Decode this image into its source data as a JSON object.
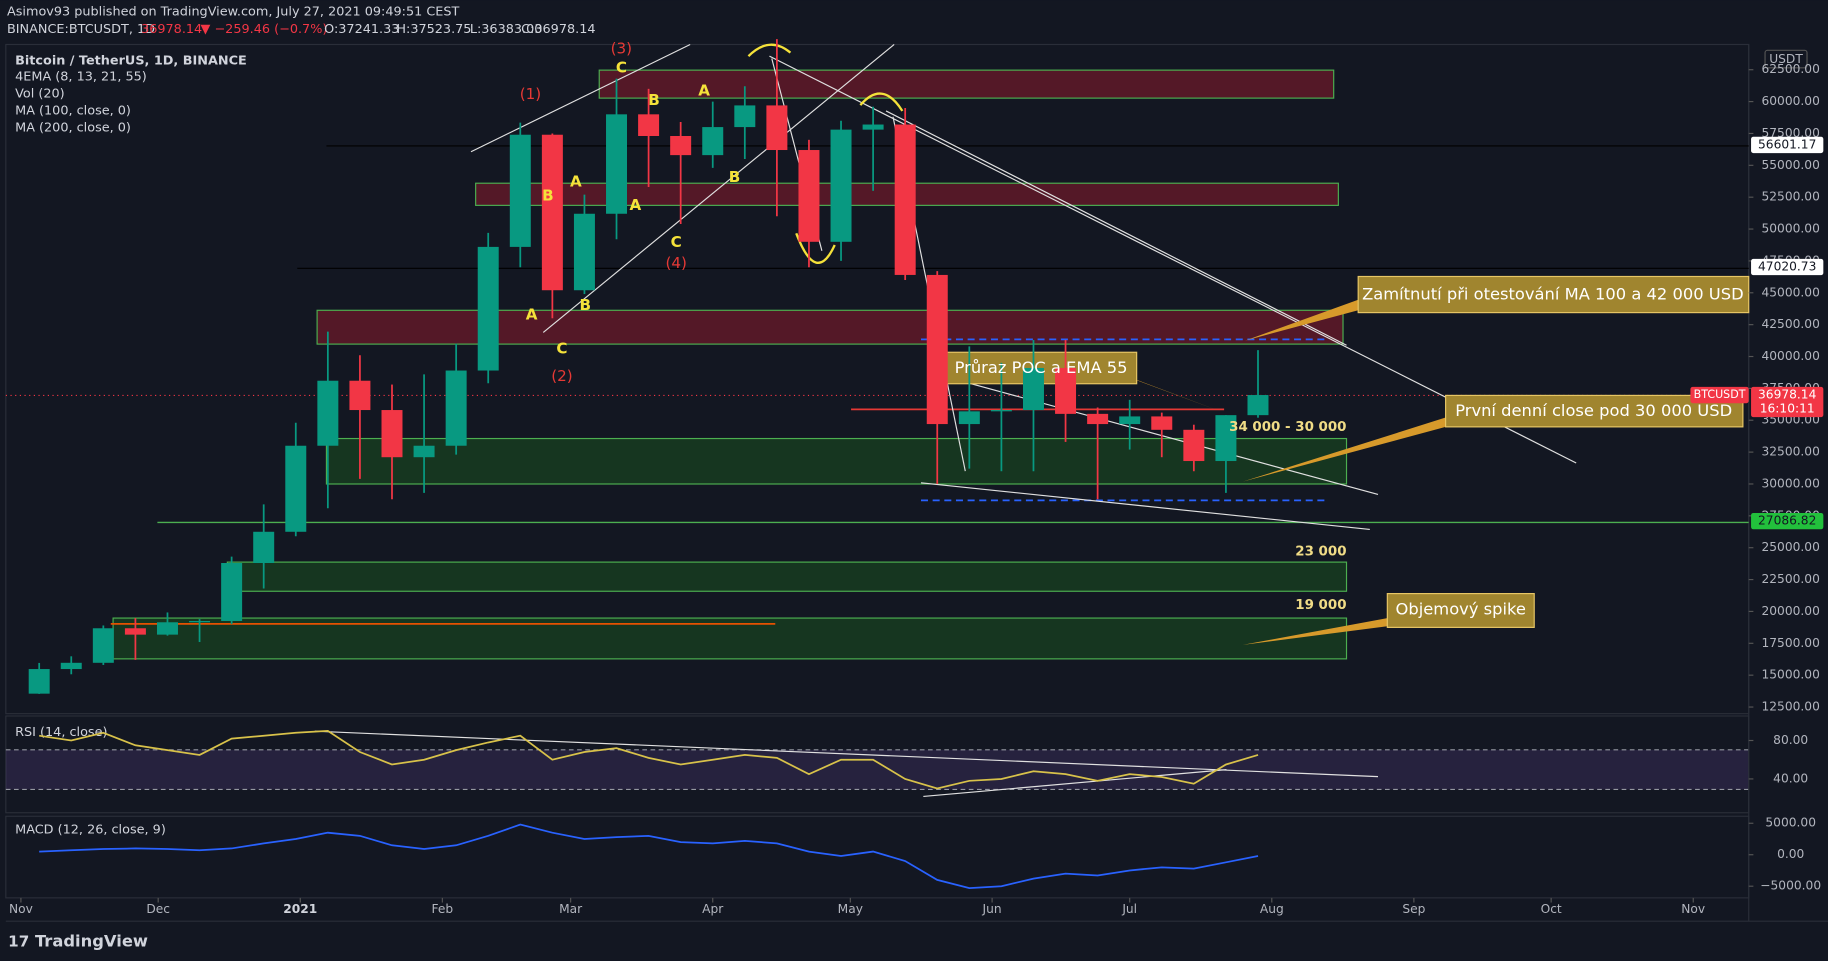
{
  "header": {
    "author": "Asimov93 published on TradingView.com, July 27, 2021 09:49:51 CEST",
    "symbol": "BINANCE:BTCUSDT, 1D",
    "last": "36978.14",
    "change": "▼ −259.46 (−0.7%)",
    "o": "O:37241.33",
    "h": "H:37523.75",
    "l": "L:36383.00",
    "c": "C:36978.14"
  },
  "footer": "TradingView",
  "chart_data": [
    {
      "type": "candlestick",
      "currency": "USDT",
      "x": [
        0,
        1,
        2,
        3,
        4,
        5,
        6,
        7,
        8,
        9,
        10,
        11,
        12,
        13,
        14,
        15,
        16,
        17,
        18,
        19,
        20,
        21,
        22,
        23,
        24,
        25,
        26,
        27,
        28,
        29,
        30,
        31,
        32,
        33,
        34,
        35,
        36,
        37,
        38
      ],
      "series": [
        {
          "name": "Bitcoin / TetherUS, 1D, BINANCE",
          "up_color": "#089981",
          "down_color": "#f23645",
          "open": [
            13550,
            15480,
            15970,
            18680,
            18180,
            19150,
            19250,
            23800,
            26250,
            33000,
            38100,
            35800,
            32100,
            33000,
            38900,
            48600,
            57400,
            45200,
            51200,
            59000,
            57300,
            55800,
            58000,
            59700,
            56200,
            49000,
            57800,
            58200,
            46400,
            34700,
            35700,
            35800,
            39100,
            35500,
            34700,
            35300,
            34250,
            31800,
            35400
          ],
          "high": [
            15960,
            16480,
            18900,
            19480,
            19920,
            19400,
            24300,
            28400,
            34800,
            41950,
            40100,
            37800,
            38600,
            41000,
            49700,
            58350,
            57500,
            52700,
            61800,
            61000,
            58400,
            60000,
            61200,
            64900,
            57000,
            58500,
            59600,
            59500,
            46700,
            40800,
            39500,
            41300,
            41300,
            36000,
            36600,
            35600,
            34650,
            35400,
            40500
          ],
          "low": [
            13530,
            15070,
            15800,
            16200,
            18100,
            17600,
            19000,
            21800,
            25900,
            28100,
            30400,
            28800,
            29300,
            32300,
            37900,
            47000,
            43000,
            44900,
            49200,
            53300,
            50400,
            54800,
            55500,
            51000,
            47000,
            47500,
            53000,
            46000,
            30000,
            31200,
            31000,
            31000,
            33300,
            28800,
            32700,
            32100,
            31000,
            29300,
            35200
          ],
          "close": [
            15480,
            15970,
            18680,
            18180,
            19150,
            19250,
            23800,
            26250,
            33000,
            38100,
            35800,
            32100,
            33000,
            38900,
            48600,
            57400,
            45200,
            51200,
            59000,
            57300,
            55800,
            58000,
            59700,
            56200,
            49000,
            57800,
            58200,
            46400,
            34700,
            35700,
            35800,
            39100,
            35500,
            34700,
            35300,
            34250,
            31800,
            35400,
            36978.14
          ]
        }
      ],
      "indicators": [
        "4EMA (8, 13, 21, 55)",
        "Vol (20)",
        "MA (100, close, 0)",
        "MA (200, close, 0)"
      ],
      "xlim": [
        -1.04,
        53.3
      ],
      "xticks": [
        {
          "value": -0.57,
          "label": "Nov"
        },
        {
          "value": 3.71,
          "label": "Dec"
        },
        {
          "value": 8.14,
          "label": "2021"
        },
        {
          "value": 12.57,
          "label": "Feb"
        },
        {
          "value": 16.57,
          "label": "Mar"
        },
        {
          "value": 21,
          "label": "Apr"
        },
        {
          "value": 25.29,
          "label": "May"
        },
        {
          "value": 29.71,
          "label": "Jun"
        },
        {
          "value": 34,
          "label": "Jul"
        },
        {
          "value": 38.43,
          "label": "Aug"
        },
        {
          "value": 42.86,
          "label": "Sep"
        },
        {
          "value": 47.14,
          "label": "Oct"
        },
        {
          "value": 51.57,
          "label": "Nov"
        }
      ],
      "ylim": [
        11980,
        64480
      ],
      "yticks": [
        {
          "value": 12500,
          "label": "12500.00"
        },
        {
          "value": 15000,
          "label": "15000.00"
        },
        {
          "value": 17500,
          "label": "17500.00"
        },
        {
          "value": 20000,
          "label": "20000.00"
        },
        {
          "value": 22500,
          "label": "22500.00"
        },
        {
          "value": 25000,
          "label": "25000.00"
        },
        {
          "value": 27500,
          "label": "27500.00"
        },
        {
          "value": 30000,
          "label": "30000.00"
        },
        {
          "value": 32500,
          "label": "32500.00"
        },
        {
          "value": 35000,
          "label": "35000.00"
        },
        {
          "value": 37500,
          "label": "37500.00"
        },
        {
          "value": 40000,
          "label": "40000.00"
        },
        {
          "value": 42500,
          "label": "42500.00"
        },
        {
          "value": 45000,
          "label": "45000.00"
        },
        {
          "value": 47500,
          "label": "47500.00"
        },
        {
          "value": 50000,
          "label": "50000.00"
        },
        {
          "value": 52500,
          "label": "52500.00"
        },
        {
          "value": 55000,
          "label": "55000.00"
        },
        {
          "value": 57500,
          "label": "57500.00"
        },
        {
          "value": 60000,
          "label": "60000.00"
        },
        {
          "value": 62500,
          "label": "62500.00"
        }
      ],
      "price_lines": [
        {
          "value": 56601.17,
          "color": "#ffffff",
          "text_color": "#131722"
        },
        {
          "value": 47020.73,
          "color": "#ffffff",
          "text_color": "#131722"
        },
        {
          "value": 36978.14,
          "color": "#f23645",
          "text_color": "#ffffff"
        },
        {
          "value": 27086.82,
          "color": "#22c03c",
          "text_color": "#131722"
        }
      ],
      "last_tag": {
        "symbol": "BTCUSDT",
        "countdown": "16:10:11"
      },
      "wave_labels": [
        "(3)",
        "C",
        "(1)",
        "B",
        "A",
        "B",
        "A",
        "A",
        "B",
        "C",
        "(4)",
        "A",
        "B",
        "C",
        "(2)"
      ],
      "callouts": [
        "Zamítnutí při otestování MA 100 a 42 000 USD",
        "Průraz POC a EMA 55",
        "První denní close pod 30 000 USD",
        "Objemový spike"
      ],
      "zone_labels": [
        "34 000 - 30 000",
        "23 000",
        "19 000"
      ]
    },
    {
      "type": "line",
      "title": "RSI (14, close)",
      "color": "#d8c24a",
      "x": [
        0,
        1,
        2,
        3,
        4,
        5,
        6,
        7,
        8,
        9,
        10,
        11,
        12,
        13,
        14,
        15,
        16,
        17,
        18,
        19,
        20,
        21,
        22,
        23,
        24,
        25,
        26,
        27,
        28,
        29,
        30,
        31,
        32,
        33,
        34,
        35,
        36,
        37,
        38
      ],
      "values": [
        85,
        80,
        88,
        75,
        70,
        65,
        82,
        85,
        88,
        90,
        68,
        55,
        60,
        70,
        78,
        85,
        60,
        68,
        72,
        62,
        55,
        60,
        65,
        62,
        45,
        60,
        60,
        40,
        30,
        38,
        40,
        48,
        45,
        38,
        45,
        42,
        35,
        55,
        65
      ],
      "ylim": [
        4.8,
        105.5
      ],
      "yticks": [
        {
          "value": 80,
          "label": "80.00"
        },
        {
          "value": 40,
          "label": "40.00"
        }
      ]
    },
    {
      "type": "line",
      "title": "MACD (12, 26, close, 9)",
      "color": "#2962ff",
      "x": [
        0,
        1,
        2,
        3,
        4,
        5,
        6,
        7,
        8,
        9,
        10,
        11,
        12,
        13,
        14,
        15,
        16,
        17,
        18,
        19,
        20,
        21,
        22,
        23,
        24,
        25,
        26,
        27,
        28,
        29,
        30,
        31,
        32,
        33,
        34,
        35,
        36,
        37,
        38
      ],
      "values": [
        500,
        700,
        900,
        1000,
        900,
        700,
        1000,
        1800,
        2500,
        3500,
        3000,
        1500,
        900,
        1500,
        3000,
        4800,
        3500,
        2500,
        2800,
        3000,
        2000,
        1800,
        2200,
        1800,
        500,
        -200,
        500,
        -1000,
        -4000,
        -5300,
        -5000,
        -3800,
        -3000,
        -3300,
        -2500,
        -2000,
        -2200,
        -1200,
        -200
      ],
      "ylim": [
        -6852,
        6111
      ],
      "yticks": [
        {
          "value": 5000,
          "label": "5000.00"
        },
        {
          "value": 0,
          "label": "0.00"
        },
        {
          "value": -5000,
          "label": "−5000.00"
        }
      ]
    }
  ]
}
